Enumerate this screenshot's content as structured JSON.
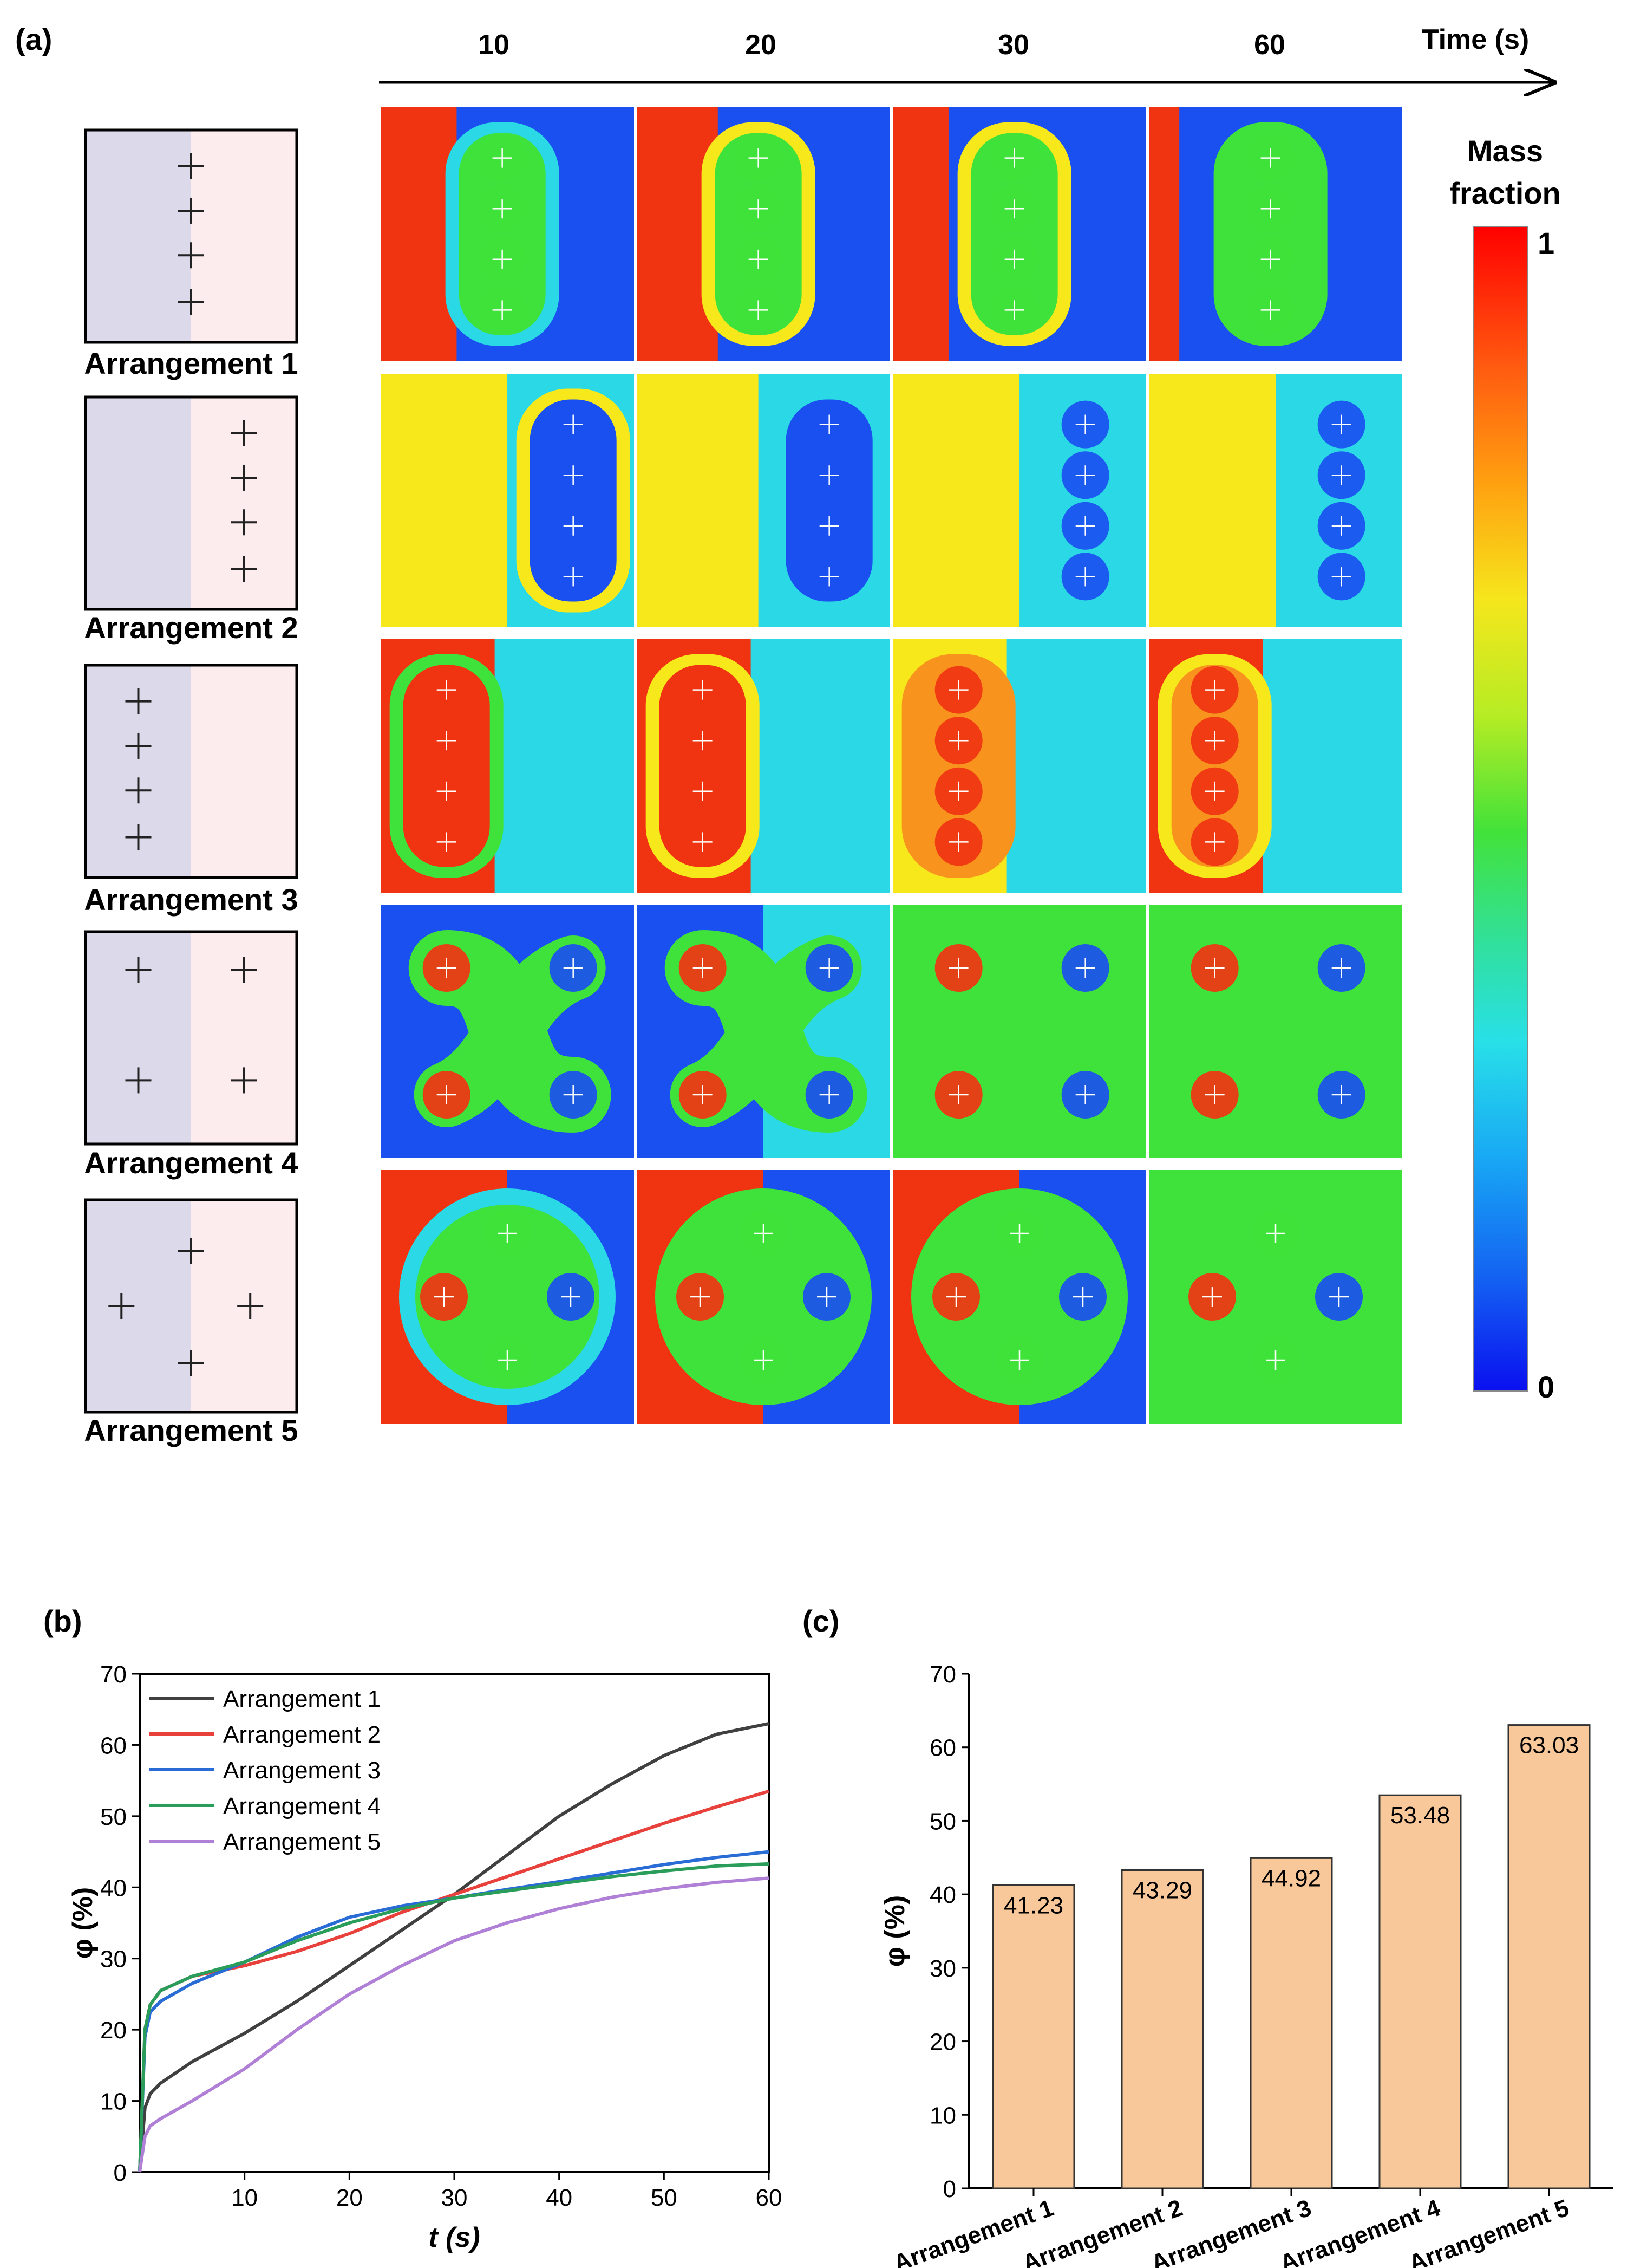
{
  "figure": {
    "panel_a": {
      "label": "(a)",
      "time_axis": {
        "title": "Time (s)",
        "ticks": [
          "10",
          "20",
          "30",
          "60"
        ]
      },
      "colorbar": {
        "title_line1": "Mass",
        "title_line2": "fraction",
        "max_label": "1",
        "min_label": "0"
      },
      "rows": [
        {
          "label": "Arrangement 1"
        },
        {
          "label": "Arrangement 2"
        },
        {
          "label": "Arrangement 3"
        },
        {
          "label": "Arrangement 4"
        },
        {
          "label": "Arrangement 5"
        }
      ],
      "palette": {
        "red": "#f03412",
        "orange": "#f8941e",
        "yellow": "#f7e81c",
        "green": "#3fe23a",
        "cyan": "#2ad8e6",
        "blue": "#1a50f0",
        "left_fluid": "#dcdaea",
        "right_fluid": "#fcecee"
      }
    },
    "panel_b": {
      "label": "(b)"
    },
    "panel_c": {
      "label": "(c)"
    }
  },
  "chart_data": [
    {
      "type": "line",
      "title": "",
      "xlabel": "t (s)",
      "ylabel": "φ (%)",
      "xlim": [
        0,
        60
      ],
      "ylim": [
        0,
        70
      ],
      "xticks": [
        10,
        20,
        30,
        40,
        50,
        60
      ],
      "yticks": [
        0,
        10,
        20,
        30,
        40,
        50,
        60,
        70
      ],
      "legend_position": "top-left",
      "x": [
        0,
        0.5,
        1,
        2,
        5,
        10,
        15,
        20,
        25,
        30,
        35,
        40,
        45,
        50,
        55,
        60
      ],
      "series": [
        {
          "name": "Arrangement 1",
          "color": "#404040",
          "values": [
            0,
            9,
            11,
            12.5,
            15.5,
            19.5,
            24,
            29,
            34,
            39,
            44.5,
            50,
            54.5,
            58.5,
            61.5,
            63
          ]
        },
        {
          "name": "Arrangement 2",
          "color": "#e8403a",
          "values": [
            0,
            20,
            23.5,
            25.5,
            27.5,
            29,
            31,
            33.5,
            36.5,
            39,
            41.5,
            44,
            46.5,
            49,
            51.3,
            53.5
          ]
        },
        {
          "name": "Arrangement 3",
          "color": "#2a6cd6",
          "values": [
            0,
            19,
            22.5,
            24,
            26.5,
            29.5,
            33,
            35.8,
            37.4,
            38.5,
            39.7,
            40.8,
            42,
            43.2,
            44.2,
            45
          ]
        },
        {
          "name": "Arrangement 4",
          "color": "#2a9d5a",
          "values": [
            0,
            20,
            23.5,
            25.5,
            27.5,
            29.5,
            32.5,
            35,
            37,
            38.5,
            39.5,
            40.5,
            41.5,
            42.3,
            43,
            43.3
          ]
        },
        {
          "name": "Arrangement 5",
          "color": "#b07fd6",
          "values": [
            0,
            5,
            6.5,
            7.5,
            10,
            14.5,
            20,
            25,
            29,
            32.5,
            35,
            37,
            38.6,
            39.8,
            40.7,
            41.3
          ]
        }
      ]
    },
    {
      "type": "bar",
      "title": "",
      "xlabel": "",
      "ylabel": "φ (%)",
      "ylim": [
        0,
        70
      ],
      "yticks": [
        0,
        10,
        20,
        30,
        40,
        50,
        60,
        70
      ],
      "bar_color": "#f8c89a",
      "categories": [
        "Arrangement 1",
        "Arrangement 2",
        "Arrangement 3",
        "Arrangement 4",
        "Arrangement 5"
      ],
      "values": [
        41.23,
        43.29,
        44.92,
        53.48,
        63.03
      ],
      "value_labels": [
        "41.23",
        "43.29",
        "44.92",
        "53.48",
        "63.03"
      ]
    }
  ]
}
